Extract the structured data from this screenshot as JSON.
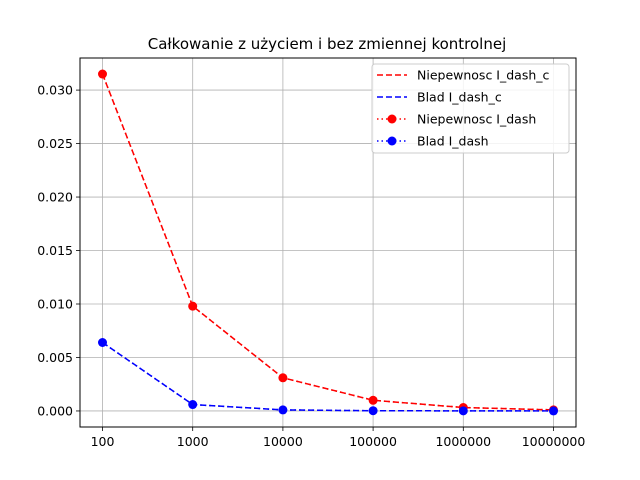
{
  "chart_data": {
    "type": "line",
    "title": "Całkowanie z użyciem i bez zmiennej kontrolnej",
    "xlabel": "",
    "ylabel": "",
    "categories": [
      "100",
      "1000",
      "10000",
      "100000",
      "1000000",
      "10000000"
    ],
    "ylim": [
      -0.0015,
      0.033
    ],
    "yticks": [
      0.0,
      0.005,
      0.01,
      0.015,
      0.02,
      0.025,
      0.03
    ],
    "ytick_labels": [
      "0.000",
      "0.005",
      "0.010",
      "0.015",
      "0.020",
      "0.025",
      "0.030"
    ],
    "grid": true,
    "legend_position": "top-right",
    "series": [
      {
        "name": "Niepewnosc I_dash_c",
        "color": "#ff0000",
        "linestyle": "dashed",
        "marker": "none",
        "values": [
          0.0315,
          0.0098,
          0.0031,
          0.001,
          0.00032,
          0.0001
        ]
      },
      {
        "name": "Blad I_dash_c",
        "color": "#0000ff",
        "linestyle": "dashed",
        "marker": "none",
        "values": [
          0.0064,
          0.0006,
          0.0001,
          2e-05,
          1e-05,
          5e-06
        ]
      },
      {
        "name": "Niepewnosc I_dash",
        "color": "#ff0000",
        "linestyle": "dotted",
        "marker": "circle",
        "values": [
          0.0315,
          0.0098,
          0.0031,
          0.001,
          0.00032,
          0.0001
        ]
      },
      {
        "name": "Blad I_dash",
        "color": "#0000ff",
        "linestyle": "dotted",
        "marker": "circle",
        "values": [
          0.0064,
          0.0006,
          0.0001,
          2e-05,
          1e-05,
          5e-06
        ]
      }
    ]
  }
}
